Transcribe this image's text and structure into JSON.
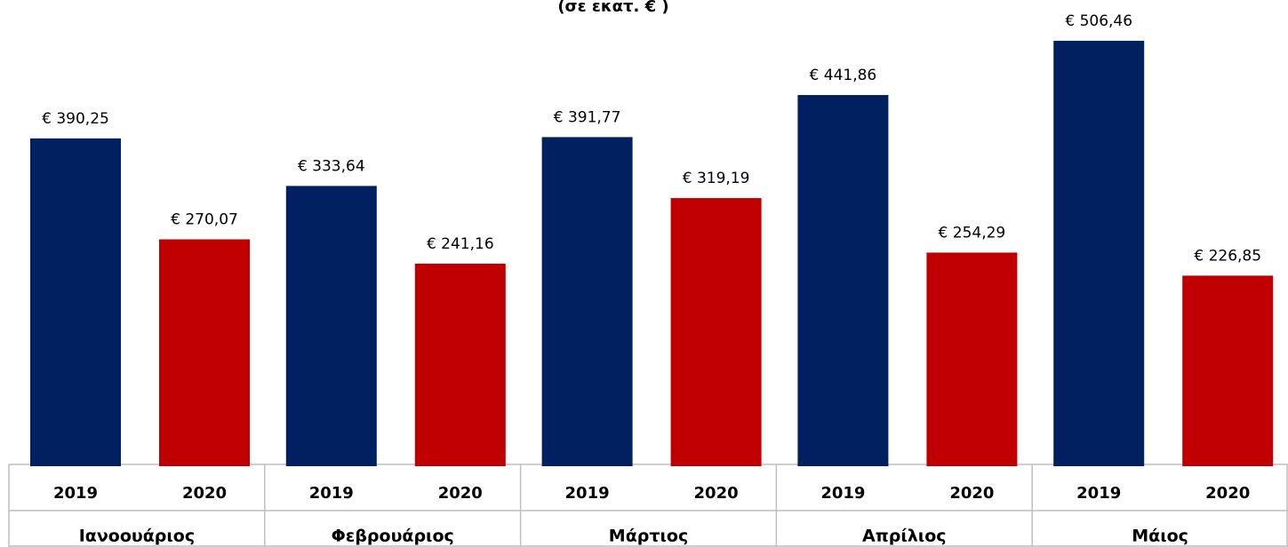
{
  "chart_data": {
    "type": "bar",
    "subtitle": "(σε εκατ. € )",
    "categories": [
      "Ιανοουάριος",
      "Φεβρουάριος",
      "Μάρτιος",
      "Απρίλιος",
      "Μάιος"
    ],
    "series": [
      {
        "name": "2019",
        "color": "#002060",
        "values": [
          390.25,
          333.64,
          391.77,
          441.86,
          506.46
        ],
        "value_labels": [
          "€ 390,25",
          "€ 333,64",
          "€ 391,77",
          "€ 441,86",
          "€ 506,46"
        ]
      },
      {
        "name": "2020",
        "color": "#c00000",
        "values": [
          270.07,
          241.16,
          319.19,
          254.29,
          226.85
        ],
        "value_labels": [
          "€ 270,07",
          "€ 241,16",
          "€ 319,19",
          "€ 254,29",
          "€ 226,85"
        ]
      }
    ],
    "ylim": [
      0,
      555
    ]
  }
}
